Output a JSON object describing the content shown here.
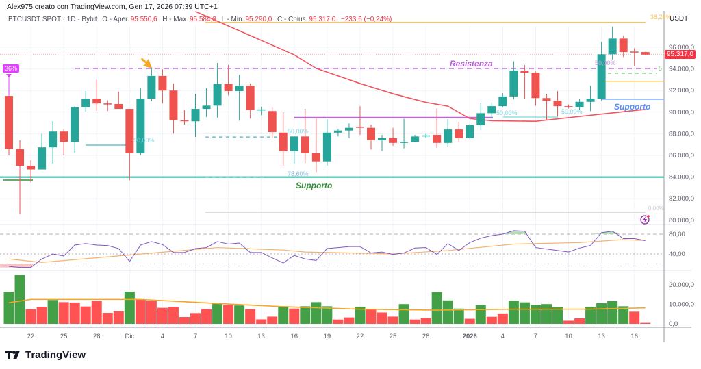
{
  "header": {
    "credit": "Alex975 creato con TradingView.com, Gen 17, 2026 07:39 UTC+1",
    "symbol": "BTCUSDT SPOT · 1D · Bybit",
    "open_label": "O - Aper.",
    "open": "95.550,6",
    "high_label": "H - Max.",
    "high": "95.584,3",
    "low_label": "L - Min.",
    "low": "95.290,0",
    "close_label": "C - Chius.",
    "close": "95.317,0",
    "change": "−233,6 (−0,24%)"
  },
  "price_axis": {
    "currency": "USDT",
    "labels": [
      "96.000,0",
      "94.000,0",
      "92.000,0",
      "90.000,0",
      "88.000,0",
      "86.000,0",
      "84.000,0",
      "82.000,0",
      "80.000,0"
    ],
    "values": [
      96000,
      94000,
      92000,
      90000,
      88000,
      86000,
      84000,
      82000,
      80000
    ],
    "current_price_label": "95.317,0",
    "current_price": 95317
  },
  "rsi_axis": {
    "labels": [
      "80,00",
      "40,00"
    ],
    "values": [
      80,
      40
    ],
    "bands": [
      80,
      40,
      20
    ]
  },
  "volume_axis": {
    "labels": [
      "20.000,0",
      "10.000,0",
      "0,0"
    ],
    "values": [
      20000,
      10000,
      0
    ]
  },
  "date_axis": {
    "labels": [
      "22",
      "25",
      "28",
      "Dic",
      "4",
      "7",
      "10",
      "13",
      "16",
      "19",
      "22",
      "25",
      "28",
      "2026",
      "4",
      "7",
      "10",
      "13",
      "16"
    ],
    "dates": [
      "2025-11-22",
      "2025-11-25",
      "2025-11-28",
      "2025-12-01",
      "2025-12-04",
      "2025-12-07",
      "2025-12-10",
      "2025-12-13",
      "2025-12-16",
      "2025-12-19",
      "2025-12-22",
      "2025-12-25",
      "2025-12-28",
      "2026-01-01",
      "2026-01-04",
      "2026-01-07",
      "2026-01-10",
      "2026-01-13",
      "2026-01-16"
    ]
  },
  "colors": {
    "up": "#26a69a",
    "down": "#ef5350",
    "vol_up": "#43a047",
    "vol_down": "#ff5252",
    "ema": "#f0545f",
    "rsi": "#7e57c2",
    "rsi_ma": "#f6b26b",
    "vol_ma": "#f5a623",
    "grid": "#f0f3fa"
  },
  "chart_data": {
    "type": "candlestick",
    "symbol": "BTCUSDT",
    "interval": "1D",
    "start_date": "2025-11-20",
    "ylim": [
      80000,
      98000
    ],
    "candles": [
      [
        91500,
        93200,
        86000,
        86600
      ],
      [
        86600,
        87400,
        80600,
        85050
      ],
      [
        85050,
        85550,
        83500,
        84700
      ],
      [
        84700,
        88000,
        84700,
        86750
      ],
      [
        86750,
        89150,
        85250,
        88200
      ],
      [
        88200,
        88450,
        86000,
        87250
      ],
      [
        87250,
        90550,
        86250,
        90450
      ],
      [
        90450,
        91950,
        90050,
        91250
      ],
      [
        91250,
        93000,
        90100,
        90800
      ],
      [
        90800,
        91100,
        90100,
        90750
      ],
      [
        90750,
        91900,
        90300,
        90300
      ],
      [
        90300,
        90300,
        83700,
        86200
      ],
      [
        86200,
        92250,
        86000,
        91250
      ],
      [
        91250,
        94150,
        91000,
        93350
      ],
      [
        93350,
        93950,
        90800,
        92000
      ],
      [
        92000,
        92650,
        88000,
        89250
      ],
      [
        89250,
        90200,
        88850,
        89150
      ],
      [
        89150,
        91700,
        87700,
        90300
      ],
      [
        90300,
        92200,
        89550,
        90600
      ],
      [
        90600,
        94550,
        89500,
        92600
      ],
      [
        92600,
        94350,
        91550,
        91950
      ],
      [
        91950,
        93450,
        89200,
        92450
      ],
      [
        92450,
        92650,
        89400,
        90200
      ],
      [
        90200,
        90500,
        89700,
        90250
      ],
      [
        90100,
        90400,
        87600,
        88150
      ],
      [
        88100,
        90000,
        85050,
        86400
      ],
      [
        86400,
        87800,
        85250,
        87750
      ],
      [
        87750,
        90300,
        85300,
        86200
      ],
      [
        86200,
        89500,
        84450,
        85450
      ],
      [
        85450,
        89350,
        85050,
        88100
      ],
      [
        88100,
        88450,
        87750,
        88300
      ],
      [
        88300,
        88950,
        87600,
        88550
      ],
      [
        88650,
        90550,
        87900,
        88600
      ],
      [
        88550,
        88850,
        86550,
        87400
      ],
      [
        87400,
        87900,
        86400,
        87600
      ],
      [
        87600,
        88550,
        86900,
        87150
      ],
      [
        87150,
        89400,
        86650,
        87250
      ],
      [
        87250,
        87900,
        87200,
        87750
      ],
      [
        87800,
        88000,
        87600,
        87850
      ],
      [
        87900,
        90350,
        86700,
        87150
      ],
      [
        87150,
        89350,
        86800,
        88400
      ],
      [
        88400,
        89100,
        87200,
        87600
      ],
      [
        87600,
        88900,
        87500,
        88800
      ],
      [
        88800,
        90800,
        88350,
        89900
      ],
      [
        89900,
        90900,
        89400,
        90550
      ],
      [
        90550,
        91750,
        90450,
        91450
      ],
      [
        91450,
        94700,
        91200,
        93850
      ],
      [
        93800,
        94350,
        91250,
        93650
      ],
      [
        93650,
        93750,
        90600,
        91300
      ],
      [
        91300,
        91700,
        89250,
        91050
      ],
      [
        91050,
        91950,
        89600,
        90550
      ],
      [
        90550,
        90700,
        90350,
        90450
      ],
      [
        90450,
        91250,
        90200,
        90950
      ],
      [
        90950,
        92450,
        90100,
        91250
      ],
      [
        91250,
        96500,
        91050,
        95350
      ],
      [
        95350,
        97900,
        94850,
        96800
      ],
      [
        96800,
        97050,
        95100,
        95550
      ],
      [
        95600,
        95900,
        94300,
        95550
      ],
      [
        95550.6,
        95584.3,
        95290.0,
        95317.0
      ]
    ],
    "candle_fields": [
      "open",
      "high",
      "low",
      "close"
    ],
    "ema": [
      [
        "2025-12-07",
        99300
      ],
      [
        "2025-12-16",
        95300
      ],
      [
        "2025-12-18",
        94050
      ],
      [
        "2025-12-22",
        92650
      ],
      [
        "2025-12-25",
        91700
      ],
      [
        "2025-12-28",
        90900
      ],
      [
        "2025-12-30",
        90550
      ],
      [
        "2026-01-01",
        89400
      ],
      [
        "2026-01-03",
        89200
      ],
      [
        "2026-01-07",
        89150
      ],
      [
        "2026-01-11",
        89600
      ],
      [
        "2026-01-17",
        90250
      ]
    ],
    "rsi": [
      15,
      13,
      13,
      30,
      40,
      36,
      58,
      61,
      58,
      57,
      51,
      25,
      58,
      65,
      59,
      43,
      43,
      51,
      53,
      65,
      60,
      62,
      43,
      43,
      32,
      22,
      37,
      30,
      27,
      51,
      53,
      55,
      55,
      42,
      44,
      39,
      42,
      52,
      53,
      39,
      61,
      47,
      63,
      72,
      77,
      80,
      87,
      86,
      53,
      50,
      47,
      44,
      52,
      57,
      83,
      86,
      71,
      71,
      67
    ],
    "rsi_ma": [
      [
        "2025-11-20",
        30
      ],
      [
        "2025-11-23",
        23
      ],
      [
        "2025-12-09",
        53
      ],
      [
        "2025-12-15",
        48
      ],
      [
        "2025-12-17",
        44
      ],
      [
        "2025-12-25",
        40
      ],
      [
        "2025-12-30",
        47
      ],
      [
        "2026-01-05",
        60
      ],
      [
        "2026-01-11",
        63
      ],
      [
        "2026-01-15",
        69
      ],
      [
        "2026-01-17",
        67
      ]
    ],
    "volume": [
      16400,
      25100,
      7500,
      8700,
      12200,
      11100,
      10900,
      8900,
      11700,
      5600,
      6400,
      16500,
      12300,
      11700,
      8200,
      8700,
      3500,
      5500,
      7500,
      10500,
      9600,
      9400,
      7500,
      2300,
      3700,
      9000,
      7800,
      9000,
      11100,
      9000,
      2200,
      3300,
      8800,
      7300,
      5800,
      3700,
      10100,
      2200,
      3000,
      16300,
      12000,
      7800,
      2600,
      9600,
      3600,
      5300,
      11900,
      11000,
      9700,
      10100,
      8700,
      1600,
      2800,
      8800,
      10600,
      11600,
      9000,
      6200,
      500
    ],
    "volume_dir": "ggrrgrrrrrrgrrrrrrrgrgrrrgrgggrrgrrrgrrgggrgrrgggggrrggggrr",
    "volume_ma": [
      [
        "2025-11-20",
        10800
      ],
      [
        "2025-11-22",
        12500
      ],
      [
        "2025-12-02",
        12500
      ],
      [
        "2025-12-09",
        10400
      ],
      [
        "2025-12-15",
        8800
      ],
      [
        "2025-12-22",
        7500
      ],
      [
        "2025-12-29",
        7000
      ],
      [
        "2026-01-05",
        7500
      ],
      [
        "2026-01-12",
        7500
      ],
      [
        "2026-01-17",
        8200
      ]
    ]
  },
  "annotations": {
    "fib_top_label": "38,20%",
    "fib_top_price": 98300,
    "resistance_label": "Resistenza",
    "resistance_price": 94050,
    "support_main_label": "Supporto",
    "support_main_price": 84000,
    "support_right_label": "Supporto",
    "support_right_price": 91200,
    "fib_50_a": "50,00%",
    "fib_50_b": "50,00%",
    "fib_50_c": "50,00%",
    "fib_50_d": "50,00%",
    "fib_50_e": "50,00%",
    "fib_786": "78,60%",
    "fib_zero": "0,00%",
    "fib_cut": "5",
    "badge": "36%",
    "range_line_price": 89500,
    "fib_right_yellow_price": 92850,
    "fib_right_green_price": 93600,
    "fib_mid_price": 87700,
    "fib_zero_price": 80745
  },
  "footer": {
    "brand": "TradingView"
  }
}
